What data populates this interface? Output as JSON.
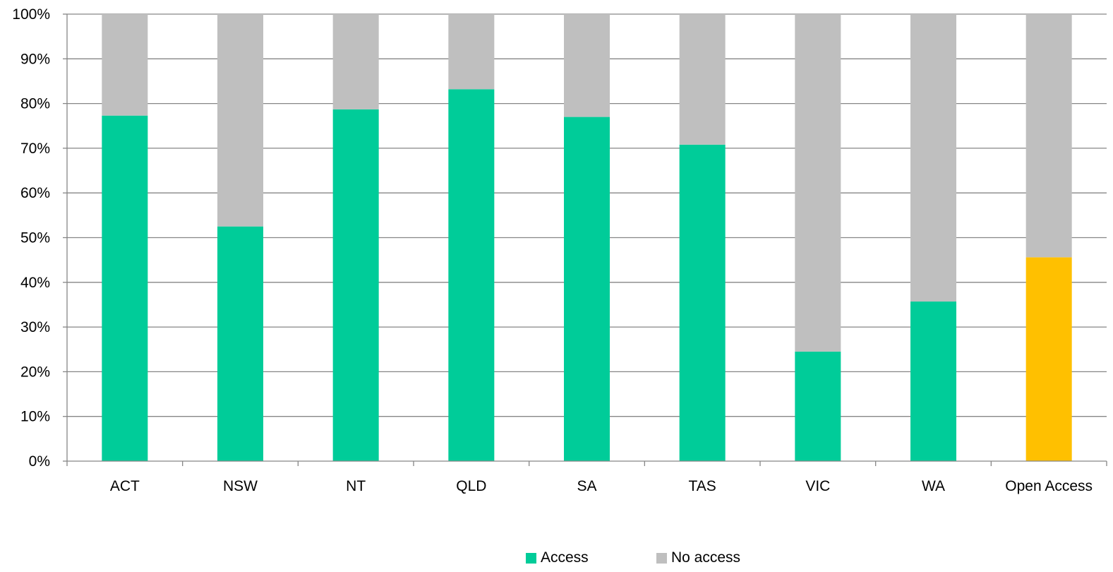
{
  "chart_data": {
    "type": "bar",
    "stacked": true,
    "percent": true,
    "title": "",
    "xlabel": "",
    "ylabel": "",
    "ylim": [
      0,
      100
    ],
    "yticks": [
      "0%",
      "10%",
      "20%",
      "30%",
      "40%",
      "50%",
      "60%",
      "70%",
      "80%",
      "90%",
      "100%"
    ],
    "grid": true,
    "legend_position": "bottom",
    "categories": [
      "ACT",
      "NSW",
      "NT",
      "QLD",
      "SA",
      "TAS",
      "VIC",
      "WA",
      "Open Access"
    ],
    "series": [
      {
        "name": "Access",
        "color": "#00CC99",
        "values": [
          77.3,
          52.5,
          78.7,
          83.2,
          77.0,
          70.8,
          24.5,
          35.7,
          45.6
        ],
        "point_colors": [
          "#00CC99",
          "#00CC99",
          "#00CC99",
          "#00CC99",
          "#00CC99",
          "#00CC99",
          "#00CC99",
          "#00CC99",
          "#FFC000"
        ]
      },
      {
        "name": "No access",
        "color": "#BFBFBF",
        "values": [
          22.7,
          47.5,
          21.3,
          16.8,
          23.0,
          29.2,
          75.5,
          64.3,
          54.4
        ]
      }
    ]
  },
  "colors": {
    "gridline": "#868686",
    "axis": "#868686",
    "background": "#FFFFFF"
  }
}
